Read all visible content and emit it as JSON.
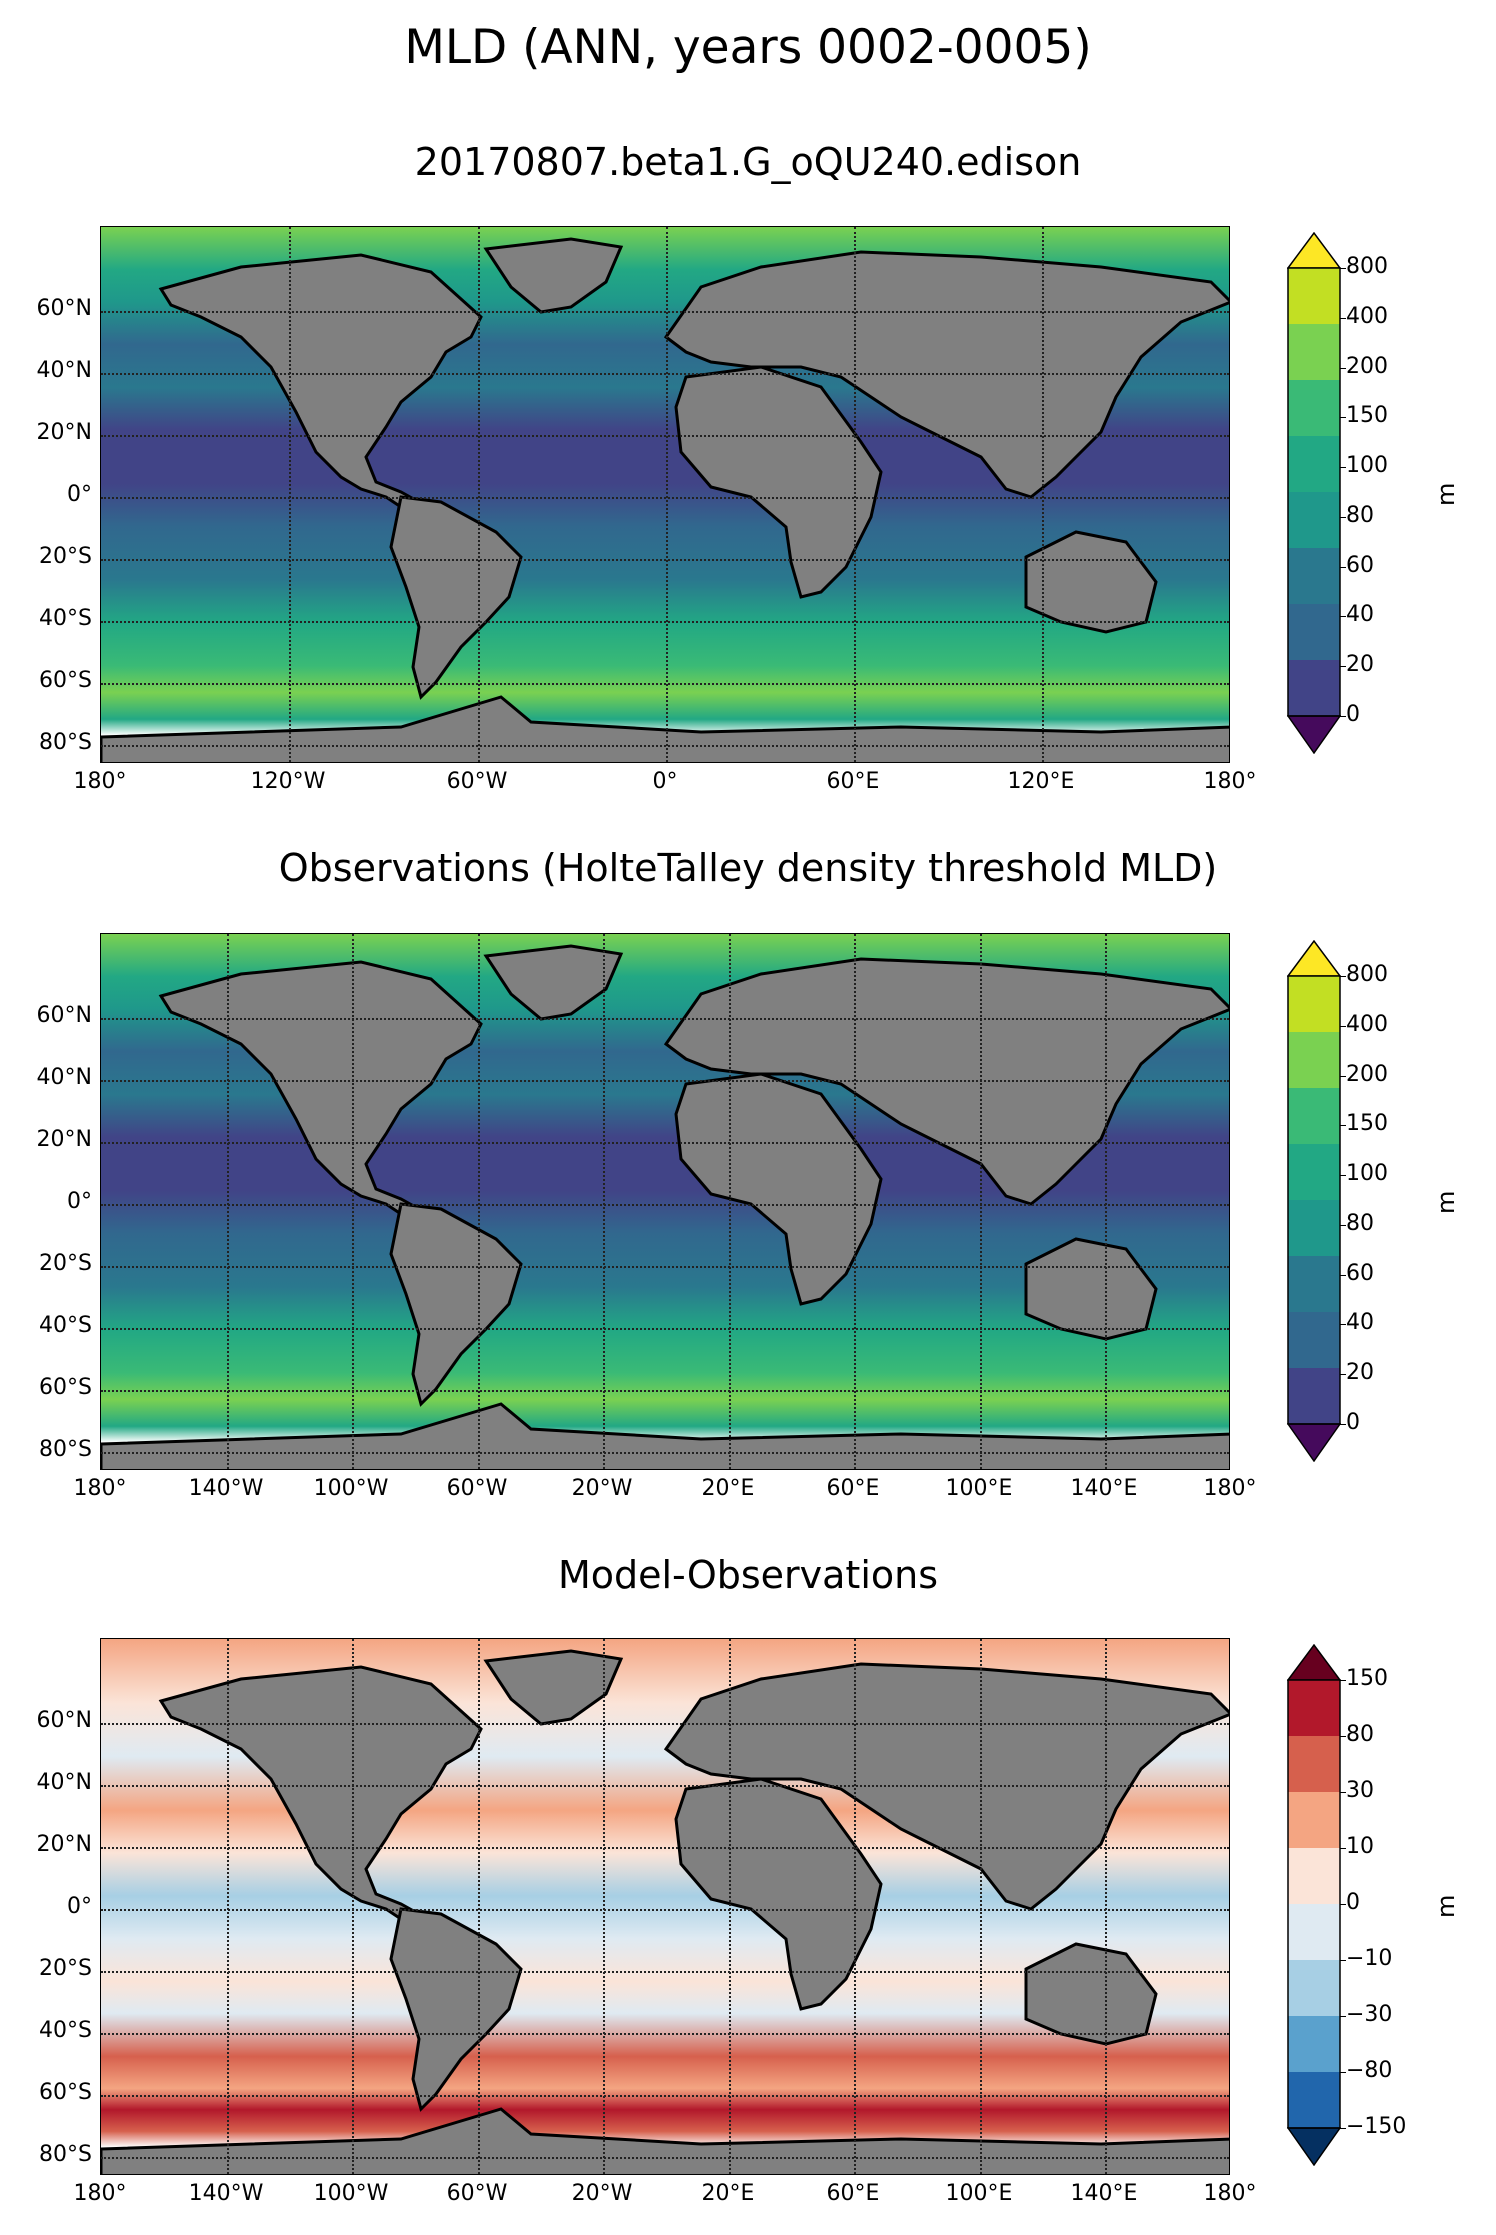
{
  "suptitle": "MLD (ANN, years 0002-0005)",
  "panels": [
    {
      "title": "20170807.beta1.G_oQU240.edison",
      "lat_labels": [
        "60°N",
        "40°N",
        "20°N",
        "0°",
        "20°S",
        "40°S",
        "60°S",
        "80°S"
      ],
      "lon_labels": [
        "180°",
        "120°W",
        "60°W",
        "0°",
        "60°E",
        "120°E",
        "180°"
      ],
      "colorbar": {
        "unit": "m",
        "ticks": [
          "800",
          "400",
          "200",
          "150",
          "100",
          "80",
          "60",
          "40",
          "20",
          "0"
        ],
        "colors": [
          "#fde725",
          "#c2df23",
          "#7ad151",
          "#3aba76",
          "#22a884",
          "#1f988b",
          "#2a788e",
          "#31688e",
          "#414487",
          "#450a5c"
        ]
      }
    },
    {
      "title": "Observations (HolteTalley density threshold MLD)",
      "lat_labels": [
        "60°N",
        "40°N",
        "20°N",
        "0°",
        "20°S",
        "40°S",
        "60°S",
        "80°S"
      ],
      "lon_labels": [
        "180°",
        "140°W",
        "100°W",
        "60°W",
        "20°W",
        "20°E",
        "60°E",
        "100°E",
        "140°E",
        "180°"
      ],
      "colorbar": {
        "unit": "m",
        "ticks": [
          "800",
          "400",
          "200",
          "150",
          "100",
          "80",
          "60",
          "40",
          "20",
          "0"
        ],
        "colors": [
          "#fde725",
          "#c2df23",
          "#7ad151",
          "#3aba76",
          "#22a884",
          "#1f988b",
          "#2a788e",
          "#31688e",
          "#414487",
          "#450a5c"
        ]
      }
    },
    {
      "title": "Model-Observations",
      "lat_labels": [
        "60°N",
        "40°N",
        "20°N",
        "0°",
        "20°S",
        "40°S",
        "60°S",
        "80°S"
      ],
      "lon_labels": [
        "180°",
        "140°W",
        "100°W",
        "60°W",
        "20°W",
        "20°E",
        "60°E",
        "100°E",
        "140°E",
        "180°"
      ],
      "colorbar": {
        "unit": "m",
        "ticks": [
          "150",
          "80",
          "30",
          "10",
          "0",
          "−10",
          "−30",
          "−80",
          "−150"
        ],
        "colors": [
          "#67001f",
          "#b2182b",
          "#d6604d",
          "#f4a582",
          "#fbe4d8",
          "#dfeaf2",
          "#a7cfe4",
          "#5aa1cd",
          "#2166ac",
          "#053061"
        ]
      }
    }
  ]
}
